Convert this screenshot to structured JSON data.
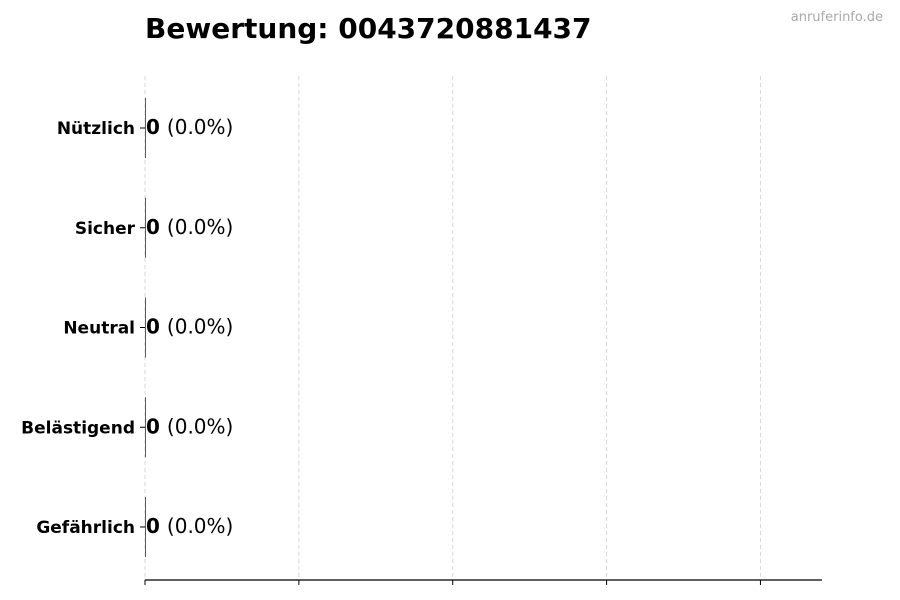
{
  "chart_data": {
    "type": "bar",
    "orientation": "horizontal",
    "title": "Bewertung: 0043720881437",
    "watermark": "anruferinfo.de",
    "categories": [
      "Nützlich",
      "Sicher",
      "Neutral",
      "Belästigend",
      "Gefährlich"
    ],
    "values": [
      0,
      0,
      0,
      0,
      0
    ],
    "percent_labels": [
      "(0.0%)",
      "(0.0%)",
      "(0.0%)",
      "(0.0%)",
      "(0.0%)"
    ],
    "xlim": [
      0,
      4.4
    ],
    "xticks": [
      0,
      1,
      2,
      3,
      4
    ],
    "xtick_labels_shown": false,
    "grid": "vertical dashed",
    "colors": {
      "grid": "#d9d9d9",
      "bar_edge": "#333333",
      "watermark": "#aaaaaa"
    }
  }
}
